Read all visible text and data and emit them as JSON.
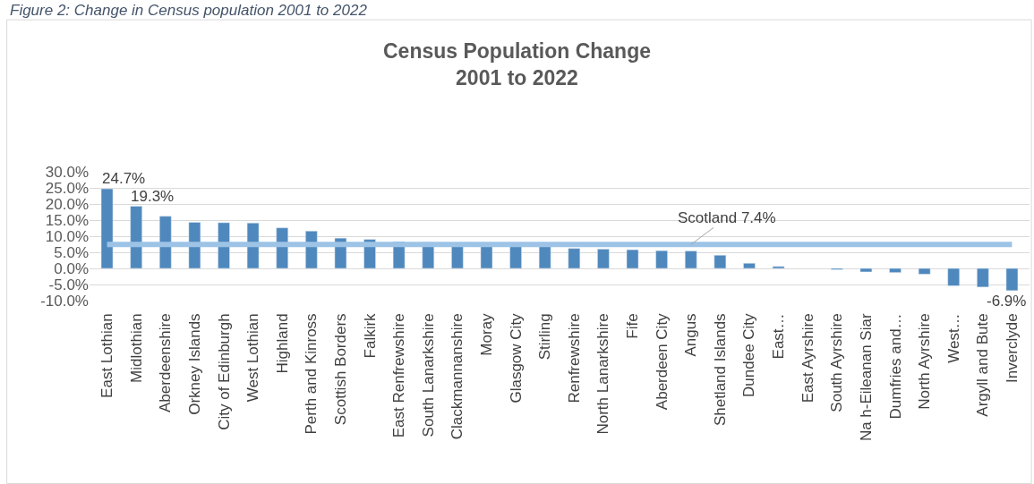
{
  "chart_data": {
    "type": "bar",
    "title": "Census Population Change\n2001 to 2022",
    "annotations": [
      "Figure 2: Change in Census population 2001 to 2022"
    ],
    "categories": [
      "East Lothian",
      "Midlothian",
      "Aberdeenshire",
      "Orkney Islands",
      "City of Edinburgh",
      "West Lothian",
      "Highland",
      "Perth and Kinross",
      "Scottish Borders",
      "Falkirk",
      "East Renfrewshire",
      "South Lanarkshire",
      "Clackmannanshire",
      "Moray",
      "Glasgow City",
      "Stirling",
      "Renfrewshire",
      "North Lanarkshire",
      "Fife",
      "Aberdeen City",
      "Angus",
      "Shetland Islands",
      "Dundee City",
      "East…",
      "East Ayrshire",
      "South Ayrshire",
      "Na h-Eileanan Siar",
      "Dumfries and…",
      "North Ayrshire",
      "West…",
      "Argyll and Bute",
      "Inverclyde"
    ],
    "values": [
      24.7,
      19.3,
      16.2,
      14.3,
      14.2,
      14.1,
      12.6,
      11.6,
      9.4,
      9.0,
      8.3,
      8.1,
      7.2,
      7.1,
      6.9,
      6.8,
      6.2,
      6.0,
      5.8,
      5.5,
      5.4,
      4.1,
      1.6,
      0.6,
      null,
      -0.4,
      -1.1,
      -1.3,
      -1.8,
      -5.4,
      -5.8,
      -6.9
    ],
    "value_labels": [
      "24.7%",
      "19.3%",
      null,
      null,
      null,
      null,
      null,
      null,
      null,
      null,
      null,
      null,
      null,
      null,
      null,
      null,
      null,
      null,
      null,
      null,
      null,
      null,
      null,
      null,
      null,
      null,
      null,
      null,
      null,
      null,
      null,
      "-6.9%"
    ],
    "color": "#4f88bd",
    "ylim": [
      -10,
      30
    ],
    "yticks": [
      {
        "value": -10,
        "label": "-10.0%"
      },
      {
        "value": -5,
        "label": "-5.0%"
      },
      {
        "value": 0,
        "label": "0.0%"
      },
      {
        "value": 5,
        "label": "5.0%"
      },
      {
        "value": 10,
        "label": "10.0%"
      },
      {
        "value": 15,
        "label": "15.0%"
      },
      {
        "value": 20,
        "label": "20.0%"
      },
      {
        "value": 25,
        "label": "25.0%"
      },
      {
        "value": 30,
        "label": "30.0%"
      }
    ],
    "ref_lines": [
      {
        "axis": "y",
        "value": 7.4,
        "label": "Scotland 7.4%",
        "color": "#9dc3e6"
      }
    ],
    "grid": "y"
  }
}
